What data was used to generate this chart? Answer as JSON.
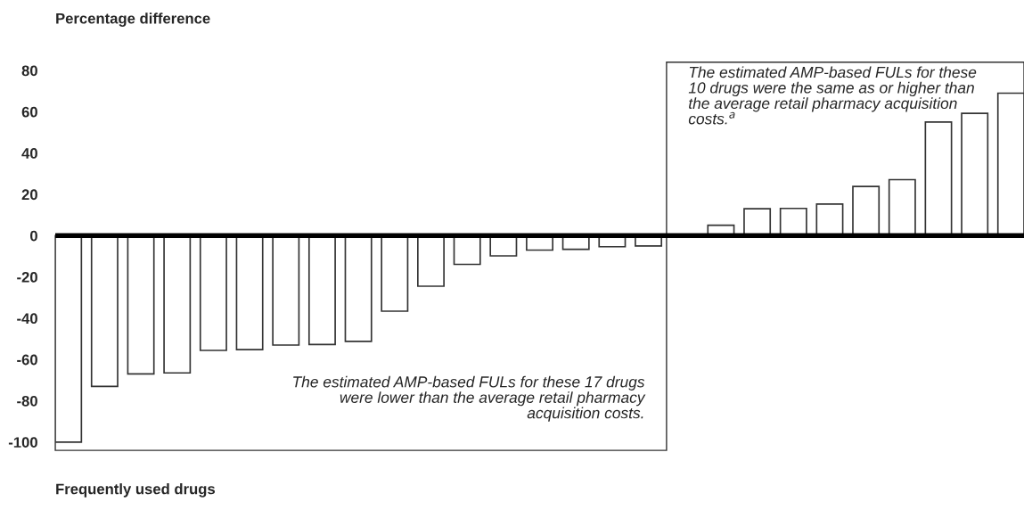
{
  "chart_data": {
    "type": "bar",
    "title": "Percentage difference",
    "xlabel": "Frequently used drugs",
    "categories": [
      null,
      null,
      null,
      null,
      null,
      null,
      null,
      null,
      null,
      null,
      null,
      null,
      null,
      null,
      null,
      null,
      null,
      null,
      null,
      null,
      null,
      null,
      null,
      null,
      null,
      null,
      null
    ],
    "values": [
      -100,
      -73,
      -67,
      -66.5,
      -55.6,
      -55.2,
      -53,
      -52.7,
      -51.2,
      -36.6,
      -24.5,
      -13.9,
      -9.8,
      -7,
      -6.6,
      -5.4,
      -5,
      0,
      5,
      13,
      13.2,
      15.3,
      23.8,
      27.1,
      55,
      59.2,
      69
    ],
    "color": "#ffffff",
    "ylim": [
      -104,
      84
    ],
    "yticks": [
      -100,
      -80,
      -60,
      -40,
      -20,
      0,
      20,
      40,
      60,
      80
    ],
    "grid": false,
    "ref_lines": [
      {
        "axis": "y",
        "value": 0,
        "color": "#000000"
      }
    ],
    "annotations": [
      "The estimated AMP-based FULs for these 17 drugs were lower than the average retail pharmacy acquisition costs.",
      "The estimated AMP-based FULs for these 10 drugs were the same as or higher than the average retail pharmacy acquisition costs.$^{a}$"
    ]
  }
}
